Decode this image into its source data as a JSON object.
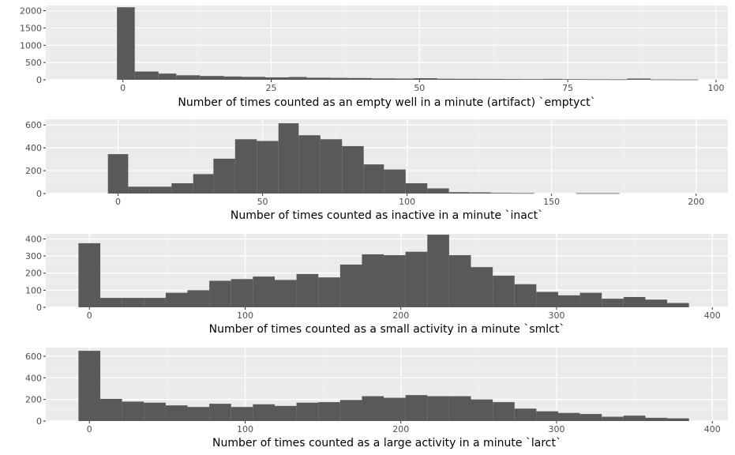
{
  "chart_data": [
    {
      "type": "histogram",
      "xlabel": "Number of times counted as an empty well in a minute (artifact) `emptyct`",
      "ylabel": "",
      "xlim": [
        -13,
        102
      ],
      "ylim": [
        0,
        2150
      ],
      "x_ticks": [
        0,
        25,
        50,
        75,
        100
      ],
      "y_ticks": [
        0,
        500,
        1000,
        1500,
        2000
      ],
      "grid": true,
      "bins": [
        {
          "x0": -1,
          "x1": 2,
          "count": 2100
        },
        {
          "x0": 2,
          "x1": 6,
          "count": 240
        },
        {
          "x0": 6,
          "x1": 9,
          "count": 180
        },
        {
          "x0": 9,
          "x1": 13,
          "count": 130
        },
        {
          "x0": 13,
          "x1": 17,
          "count": 110
        },
        {
          "x0": 17,
          "x1": 20,
          "count": 95
        },
        {
          "x0": 20,
          "x1": 24,
          "count": 85
        },
        {
          "x0": 24,
          "x1": 28,
          "count": 70
        },
        {
          "x0": 28,
          "x1": 31,
          "count": 80
        },
        {
          "x0": 31,
          "x1": 35,
          "count": 60
        },
        {
          "x0": 35,
          "x1": 38,
          "count": 55
        },
        {
          "x0": 38,
          "x1": 42,
          "count": 50
        },
        {
          "x0": 42,
          "x1": 46,
          "count": 40
        },
        {
          "x0": 46,
          "x1": 49,
          "count": 35
        },
        {
          "x0": 49,
          "x1": 53,
          "count": 45
        },
        {
          "x0": 53,
          "x1": 56,
          "count": 30
        },
        {
          "x0": 56,
          "x1": 60,
          "count": 28
        },
        {
          "x0": 60,
          "x1": 64,
          "count": 25
        },
        {
          "x0": 64,
          "x1": 67,
          "count": 22
        },
        {
          "x0": 67,
          "x1": 71,
          "count": 20
        },
        {
          "x0": 71,
          "x1": 74,
          "count": 25
        },
        {
          "x0": 74,
          "x1": 78,
          "count": 18
        },
        {
          "x0": 78,
          "x1": 82,
          "count": 15
        },
        {
          "x0": 82,
          "x1": 85,
          "count": 12
        },
        {
          "x0": 85,
          "x1": 89,
          "count": 35
        },
        {
          "x0": 89,
          "x1": 93,
          "count": 10
        },
        {
          "x0": 93,
          "x1": 97,
          "count": 8
        }
      ]
    },
    {
      "type": "histogram",
      "xlabel": "Number of times counted as inactive in a minute `inact`",
      "ylabel": "",
      "xlim": [
        -25,
        211
      ],
      "ylim": [
        0,
        650
      ],
      "x_ticks": [
        0,
        50,
        100,
        150,
        200
      ],
      "y_ticks": [
        0,
        200,
        400,
        600
      ],
      "grid": true,
      "bins": [
        {
          "x0": -3.5,
          "x1": 3.5,
          "count": 345
        },
        {
          "x0": 3.5,
          "x1": 11,
          "count": 60
        },
        {
          "x0": 11,
          "x1": 18.5,
          "count": 60
        },
        {
          "x0": 18.5,
          "x1": 26,
          "count": 90
        },
        {
          "x0": 26,
          "x1": 33,
          "count": 170
        },
        {
          "x0": 33,
          "x1": 40.5,
          "count": 305
        },
        {
          "x0": 40.5,
          "x1": 48,
          "count": 475
        },
        {
          "x0": 48,
          "x1": 55.5,
          "count": 460
        },
        {
          "x0": 55.5,
          "x1": 62.5,
          "count": 615
        },
        {
          "x0": 62.5,
          "x1": 70,
          "count": 510
        },
        {
          "x0": 70,
          "x1": 77.5,
          "count": 475
        },
        {
          "x0": 77.5,
          "x1": 85,
          "count": 415
        },
        {
          "x0": 85,
          "x1": 92,
          "count": 255
        },
        {
          "x0": 92,
          "x1": 99.5,
          "count": 210
        },
        {
          "x0": 99.5,
          "x1": 107,
          "count": 90
        },
        {
          "x0": 107,
          "x1": 114.5,
          "count": 45
        },
        {
          "x0": 114.5,
          "x1": 121.5,
          "count": 12
        },
        {
          "x0": 121.5,
          "x1": 129,
          "count": 10
        },
        {
          "x0": 129,
          "x1": 136.5,
          "count": 6
        },
        {
          "x0": 136.5,
          "x1": 144,
          "count": 4
        },
        {
          "x0": 158.5,
          "x1": 166,
          "count": 3
        },
        {
          "x0": 166,
          "x1": 173.5,
          "count": 3
        }
      ]
    },
    {
      "type": "histogram",
      "xlabel": "Number of times counted as a small activity in a minute `smlct`",
      "ylabel": "",
      "xlim": [
        -28,
        410
      ],
      "ylim": [
        0,
        430
      ],
      "x_ticks": [
        0,
        100,
        200,
        300,
        400
      ],
      "y_ticks": [
        0,
        100,
        200,
        300,
        400
      ],
      "grid": true,
      "bins": [
        {
          "x0": -7,
          "x1": 7,
          "count": 375
        },
        {
          "x0": 7,
          "x1": 21,
          "count": 55
        },
        {
          "x0": 21,
          "x1": 35,
          "count": 55
        },
        {
          "x0": 35,
          "x1": 49,
          "count": 55
        },
        {
          "x0": 49,
          "x1": 63,
          "count": 85
        },
        {
          "x0": 63,
          "x1": 77,
          "count": 100
        },
        {
          "x0": 77,
          "x1": 91,
          "count": 155
        },
        {
          "x0": 91,
          "x1": 105,
          "count": 165
        },
        {
          "x0": 105,
          "x1": 119,
          "count": 180
        },
        {
          "x0": 119,
          "x1": 133,
          "count": 160
        },
        {
          "x0": 133,
          "x1": 147,
          "count": 195
        },
        {
          "x0": 147,
          "x1": 161,
          "count": 175
        },
        {
          "x0": 161,
          "x1": 175,
          "count": 250
        },
        {
          "x0": 175,
          "x1": 189,
          "count": 310
        },
        {
          "x0": 189,
          "x1": 203,
          "count": 305
        },
        {
          "x0": 203,
          "x1": 217,
          "count": 325
        },
        {
          "x0": 217,
          "x1": 231,
          "count": 425
        },
        {
          "x0": 231,
          "x1": 245,
          "count": 305
        },
        {
          "x0": 245,
          "x1": 259,
          "count": 235
        },
        {
          "x0": 259,
          "x1": 273,
          "count": 185
        },
        {
          "x0": 273,
          "x1": 287,
          "count": 135
        },
        {
          "x0": 287,
          "x1": 301,
          "count": 90
        },
        {
          "x0": 301,
          "x1": 315,
          "count": 70
        },
        {
          "x0": 315,
          "x1": 329,
          "count": 85
        },
        {
          "x0": 329,
          "x1": 343,
          "count": 50
        },
        {
          "x0": 343,
          "x1": 357,
          "count": 60
        },
        {
          "x0": 357,
          "x1": 371,
          "count": 45
        },
        {
          "x0": 371,
          "x1": 385,
          "count": 25
        }
      ]
    },
    {
      "type": "histogram",
      "xlabel": "Number of times counted as a large activity in a minute `larct`",
      "ylabel": "",
      "xlim": [
        -28,
        410
      ],
      "ylim": [
        0,
        680
      ],
      "x_ticks": [
        0,
        100,
        200,
        300,
        400
      ],
      "y_ticks": [
        0,
        200,
        400,
        600
      ],
      "grid": true,
      "bins": [
        {
          "x0": -7,
          "x1": 7,
          "count": 650
        },
        {
          "x0": 7,
          "x1": 21,
          "count": 205
        },
        {
          "x0": 21,
          "x1": 35,
          "count": 180
        },
        {
          "x0": 35,
          "x1": 49,
          "count": 170
        },
        {
          "x0": 49,
          "x1": 63,
          "count": 145
        },
        {
          "x0": 63,
          "x1": 77,
          "count": 130
        },
        {
          "x0": 77,
          "x1": 91,
          "count": 160
        },
        {
          "x0": 91,
          "x1": 105,
          "count": 130
        },
        {
          "x0": 105,
          "x1": 119,
          "count": 155
        },
        {
          "x0": 119,
          "x1": 133,
          "count": 140
        },
        {
          "x0": 133,
          "x1": 147,
          "count": 170
        },
        {
          "x0": 147,
          "x1": 161,
          "count": 175
        },
        {
          "x0": 161,
          "x1": 175,
          "count": 195
        },
        {
          "x0": 175,
          "x1": 189,
          "count": 230
        },
        {
          "x0": 189,
          "x1": 203,
          "count": 215
        },
        {
          "x0": 203,
          "x1": 217,
          "count": 240
        },
        {
          "x0": 217,
          "x1": 231,
          "count": 230
        },
        {
          "x0": 231,
          "x1": 245,
          "count": 230
        },
        {
          "x0": 245,
          "x1": 259,
          "count": 200
        },
        {
          "x0": 259,
          "x1": 273,
          "count": 175
        },
        {
          "x0": 273,
          "x1": 287,
          "count": 115
        },
        {
          "x0": 287,
          "x1": 301,
          "count": 90
        },
        {
          "x0": 301,
          "x1": 315,
          "count": 75
        },
        {
          "x0": 315,
          "x1": 329,
          "count": 65
        },
        {
          "x0": 329,
          "x1": 343,
          "count": 40
        },
        {
          "x0": 343,
          "x1": 357,
          "count": 50
        },
        {
          "x0": 357,
          "x1": 371,
          "count": 30
        },
        {
          "x0": 371,
          "x1": 385,
          "count": 25
        }
      ]
    }
  ]
}
